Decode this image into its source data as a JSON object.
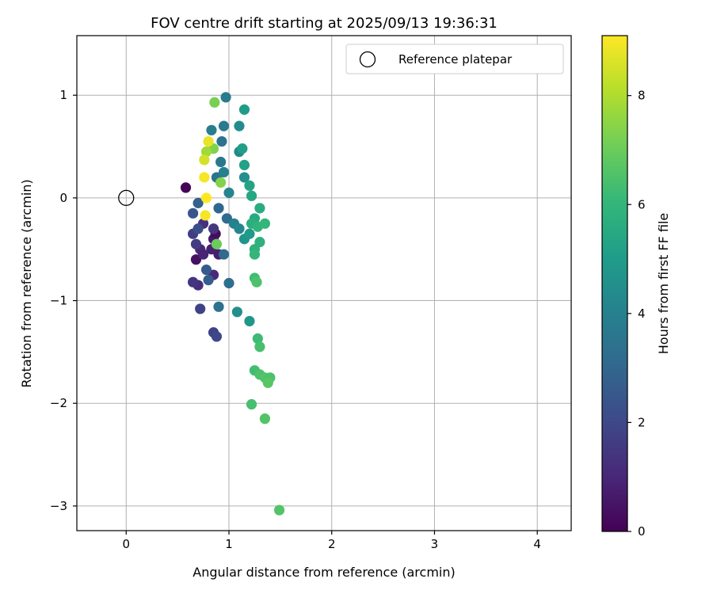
{
  "chart_data": {
    "type": "scatter",
    "title": "FOV centre drift starting at 2025/09/13 19:36:31",
    "xlabel": "Angular distance from reference (arcmin)",
    "ylabel": "Rotation from reference (arcmin)",
    "xlim": [
      -0.48,
      4.33
    ],
    "ylim": [
      -3.24,
      1.58
    ],
    "x_ticks": [
      0,
      1,
      2,
      3,
      4
    ],
    "y_ticks": [
      1,
      0,
      -1,
      -2,
      -3
    ],
    "x_tick_labels": [
      "0",
      "1",
      "2",
      "3",
      "4"
    ],
    "y_tick_labels": [
      "1",
      "0",
      "−1",
      "−2",
      "−3"
    ],
    "grid": true,
    "legend": {
      "position": "top-right",
      "entries": [
        "Reference platepar"
      ]
    },
    "reference": {
      "label": "Reference platepar",
      "x": 0,
      "y": 0
    },
    "colorbar": {
      "label": "Hours from first FF file",
      "min": 0,
      "max": 9.1,
      "ticks": [
        0,
        2,
        4,
        6,
        8
      ],
      "tick_labels": [
        "0",
        "2",
        "4",
        "6",
        "8"
      ],
      "colormap": "viridis"
    },
    "colormap_stops": [
      "#440154",
      "#482878",
      "#3e4989",
      "#31688e",
      "#26828e",
      "#1f9e89",
      "#35b779",
      "#6ece58",
      "#b5de2b",
      "#fde725"
    ],
    "series": [
      {
        "name": "FOV centre drift",
        "points": [
          {
            "x": 0.58,
            "y": 0.1,
            "t": 0.1
          },
          {
            "x": 0.68,
            "y": -0.6,
            "t": 0.4
          },
          {
            "x": 0.85,
            "y": -0.4,
            "t": 0.6
          },
          {
            "x": 0.87,
            "y": -0.35,
            "t": 0.3
          },
          {
            "x": 0.83,
            "y": -0.5,
            "t": 0.8
          },
          {
            "x": 0.72,
            "y": -0.5,
            "t": 1.0
          },
          {
            "x": 0.75,
            "y": -0.55,
            "t": 0.9
          },
          {
            "x": 0.9,
            "y": -0.55,
            "t": 0.7
          },
          {
            "x": 0.85,
            "y": -0.75,
            "t": 1.1
          },
          {
            "x": 0.7,
            "y": -0.85,
            "t": 1.2
          },
          {
            "x": 0.65,
            "y": -0.82,
            "t": 1.4
          },
          {
            "x": 0.85,
            "y": -0.3,
            "t": 1.5
          },
          {
            "x": 0.75,
            "y": -0.25,
            "t": 1.3
          },
          {
            "x": 0.68,
            "y": -0.45,
            "t": 1.6
          },
          {
            "x": 0.65,
            "y": -0.35,
            "t": 1.7
          },
          {
            "x": 0.72,
            "y": -1.08,
            "t": 1.8
          },
          {
            "x": 0.85,
            "y": -1.31,
            "t": 1.8
          },
          {
            "x": 0.88,
            "y": -1.35,
            "t": 2.0
          },
          {
            "x": 0.7,
            "y": -0.3,
            "t": 2.2
          },
          {
            "x": 0.65,
            "y": -0.15,
            "t": 2.4
          },
          {
            "x": 0.78,
            "y": -0.7,
            "t": 2.6
          },
          {
            "x": 0.8,
            "y": -0.8,
            "t": 2.7
          },
          {
            "x": 0.7,
            "y": -0.05,
            "t": 2.8
          },
          {
            "x": 0.9,
            "y": -0.1,
            "t": 3.0
          },
          {
            "x": 0.95,
            "y": -0.55,
            "t": 3.1
          },
          {
            "x": 0.98,
            "y": -0.2,
            "t": 3.2
          },
          {
            "x": 1.0,
            "y": -0.83,
            "t": 3.3
          },
          {
            "x": 0.9,
            "y": -1.06,
            "t": 3.4
          },
          {
            "x": 0.88,
            "y": 0.2,
            "t": 3.5
          },
          {
            "x": 0.92,
            "y": 0.35,
            "t": 3.6
          },
          {
            "x": 0.93,
            "y": 0.55,
            "t": 3.5
          },
          {
            "x": 0.95,
            "y": 0.7,
            "t": 3.7
          },
          {
            "x": 0.97,
            "y": 0.98,
            "t": 3.8
          },
          {
            "x": 0.83,
            "y": 0.66,
            "t": 3.9
          },
          {
            "x": 0.95,
            "y": 0.25,
            "t": 4.0
          },
          {
            "x": 1.0,
            "y": 0.05,
            "t": 4.1
          },
          {
            "x": 1.05,
            "y": -0.25,
            "t": 4.0
          },
          {
            "x": 1.1,
            "y": -0.3,
            "t": 4.2
          },
          {
            "x": 1.1,
            "y": 0.45,
            "t": 4.3
          },
          {
            "x": 1.15,
            "y": 0.2,
            "t": 4.5
          },
          {
            "x": 1.1,
            "y": 0.7,
            "t": 4.4
          },
          {
            "x": 1.08,
            "y": -1.11,
            "t": 4.5
          },
          {
            "x": 1.2,
            "y": -1.2,
            "t": 4.8
          },
          {
            "x": 1.15,
            "y": -0.4,
            "t": 4.7
          },
          {
            "x": 1.2,
            "y": -0.35,
            "t": 4.9
          },
          {
            "x": 1.15,
            "y": 0.86,
            "t": 5.0
          },
          {
            "x": 1.13,
            "y": 0.48,
            "t": 5.1
          },
          {
            "x": 1.15,
            "y": 0.32,
            "t": 5.2
          },
          {
            "x": 1.2,
            "y": 0.12,
            "t": 5.3
          },
          {
            "x": 1.22,
            "y": 0.02,
            "t": 5.4
          },
          {
            "x": 1.25,
            "y": -0.2,
            "t": 5.5
          },
          {
            "x": 1.3,
            "y": -0.1,
            "t": 5.6
          },
          {
            "x": 1.22,
            "y": -0.25,
            "t": 5.7
          },
          {
            "x": 1.25,
            "y": -0.5,
            "t": 5.8
          },
          {
            "x": 1.28,
            "y": -0.28,
            "t": 5.9
          },
          {
            "x": 1.35,
            "y": -0.25,
            "t": 6.0
          },
          {
            "x": 1.3,
            "y": -0.43,
            "t": 5.8
          },
          {
            "x": 1.25,
            "y": -0.55,
            "t": 6.0
          },
          {
            "x": 1.25,
            "y": -0.78,
            "t": 6.3
          },
          {
            "x": 1.27,
            "y": -0.82,
            "t": 6.5
          },
          {
            "x": 1.28,
            "y": -1.37,
            "t": 6.2
          },
          {
            "x": 1.3,
            "y": -1.45,
            "t": 6.4
          },
          {
            "x": 1.25,
            "y": -1.68,
            "t": 6.3
          },
          {
            "x": 1.3,
            "y": -1.72,
            "t": 6.5
          },
          {
            "x": 1.35,
            "y": -1.75,
            "t": 6.6
          },
          {
            "x": 1.4,
            "y": -1.75,
            "t": 6.5
          },
          {
            "x": 1.38,
            "y": -1.8,
            "t": 6.7
          },
          {
            "x": 1.22,
            "y": -2.01,
            "t": 6.4
          },
          {
            "x": 1.35,
            "y": -2.15,
            "t": 6.6
          },
          {
            "x": 1.49,
            "y": -3.04,
            "t": 6.6
          },
          {
            "x": 0.86,
            "y": 0.93,
            "t": 7.2
          },
          {
            "x": 0.85,
            "y": 0.48,
            "t": 7.3
          },
          {
            "x": 0.88,
            "y": -0.45,
            "t": 7.0
          },
          {
            "x": 0.92,
            "y": 0.15,
            "t": 7.4
          },
          {
            "x": 0.78,
            "y": 0.45,
            "t": 7.8
          },
          {
            "x": 0.76,
            "y": 0.37,
            "t": 8.5
          },
          {
            "x": 0.8,
            "y": 0.55,
            "t": 8.8
          },
          {
            "x": 0.76,
            "y": 0.2,
            "t": 9.0
          },
          {
            "x": 0.78,
            "y": 0.0,
            "t": 9.1
          },
          {
            "x": 0.77,
            "y": -0.17,
            "t": 9.0
          }
        ]
      }
    ]
  }
}
